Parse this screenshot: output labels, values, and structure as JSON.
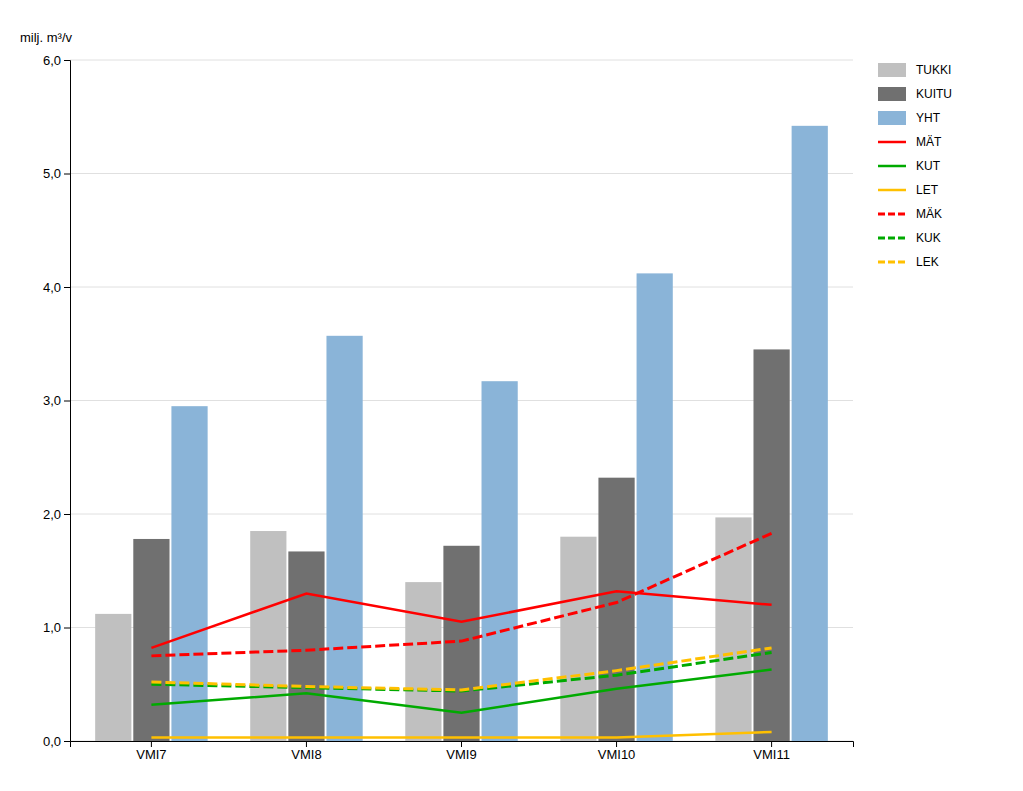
{
  "chart_data": {
    "type": "bar",
    "ylabel": "milj. m³/v",
    "categories": [
      "VMI7",
      "VMI8",
      "VMI9",
      "VMI10",
      "VMI11"
    ],
    "series": [
      {
        "name": "TUKKI",
        "type": "bar",
        "color": "#c0c0c0",
        "values": [
          1.12,
          1.85,
          1.4,
          1.8,
          1.97
        ]
      },
      {
        "name": "KUITU",
        "type": "bar",
        "color": "#707070",
        "values": [
          1.78,
          1.67,
          1.72,
          2.32,
          3.45
        ]
      },
      {
        "name": "YHT",
        "type": "bar",
        "color": "#8ab4d8",
        "values": [
          2.95,
          3.57,
          3.17,
          4.12,
          5.42
        ]
      },
      {
        "name": "MÄT",
        "type": "line",
        "line_style": "solid",
        "color": "#ff0000",
        "values": [
          0.82,
          1.3,
          1.05,
          1.32,
          1.2
        ]
      },
      {
        "name": "KUT",
        "type": "line",
        "line_style": "solid",
        "color": "#00aa00",
        "values": [
          0.32,
          0.42,
          0.25,
          0.46,
          0.63
        ]
      },
      {
        "name": "LET",
        "type": "line",
        "line_style": "solid",
        "color": "#ffc000",
        "values": [
          0.03,
          0.03,
          0.03,
          0.03,
          0.08
        ]
      },
      {
        "name": "MÄK",
        "type": "line",
        "line_style": "dashed",
        "color": "#ff0000",
        "values": [
          0.75,
          0.8,
          0.88,
          1.22,
          1.83
        ]
      },
      {
        "name": "KUK",
        "type": "line",
        "line_style": "dashed",
        "color": "#00aa00",
        "values": [
          0.5,
          0.47,
          0.44,
          0.58,
          0.78
        ]
      },
      {
        "name": "LEK",
        "type": "line",
        "line_style": "dashed",
        "color": "#ffc000",
        "values": [
          0.52,
          0.48,
          0.45,
          0.62,
          0.82
        ]
      }
    ],
    "ylim": [
      0.0,
      6.0
    ],
    "yticks": [
      {
        "value": 0.0,
        "label": "0,0"
      },
      {
        "value": 1.0,
        "label": "1,0"
      },
      {
        "value": 2.0,
        "label": "2,0"
      },
      {
        "value": 3.0,
        "label": "3,0"
      },
      {
        "value": 4.0,
        "label": "4,0"
      },
      {
        "value": 5.0,
        "label": "5,0"
      },
      {
        "value": 6.0,
        "label": "6,0"
      }
    ],
    "grid": true,
    "legend": "right"
  }
}
